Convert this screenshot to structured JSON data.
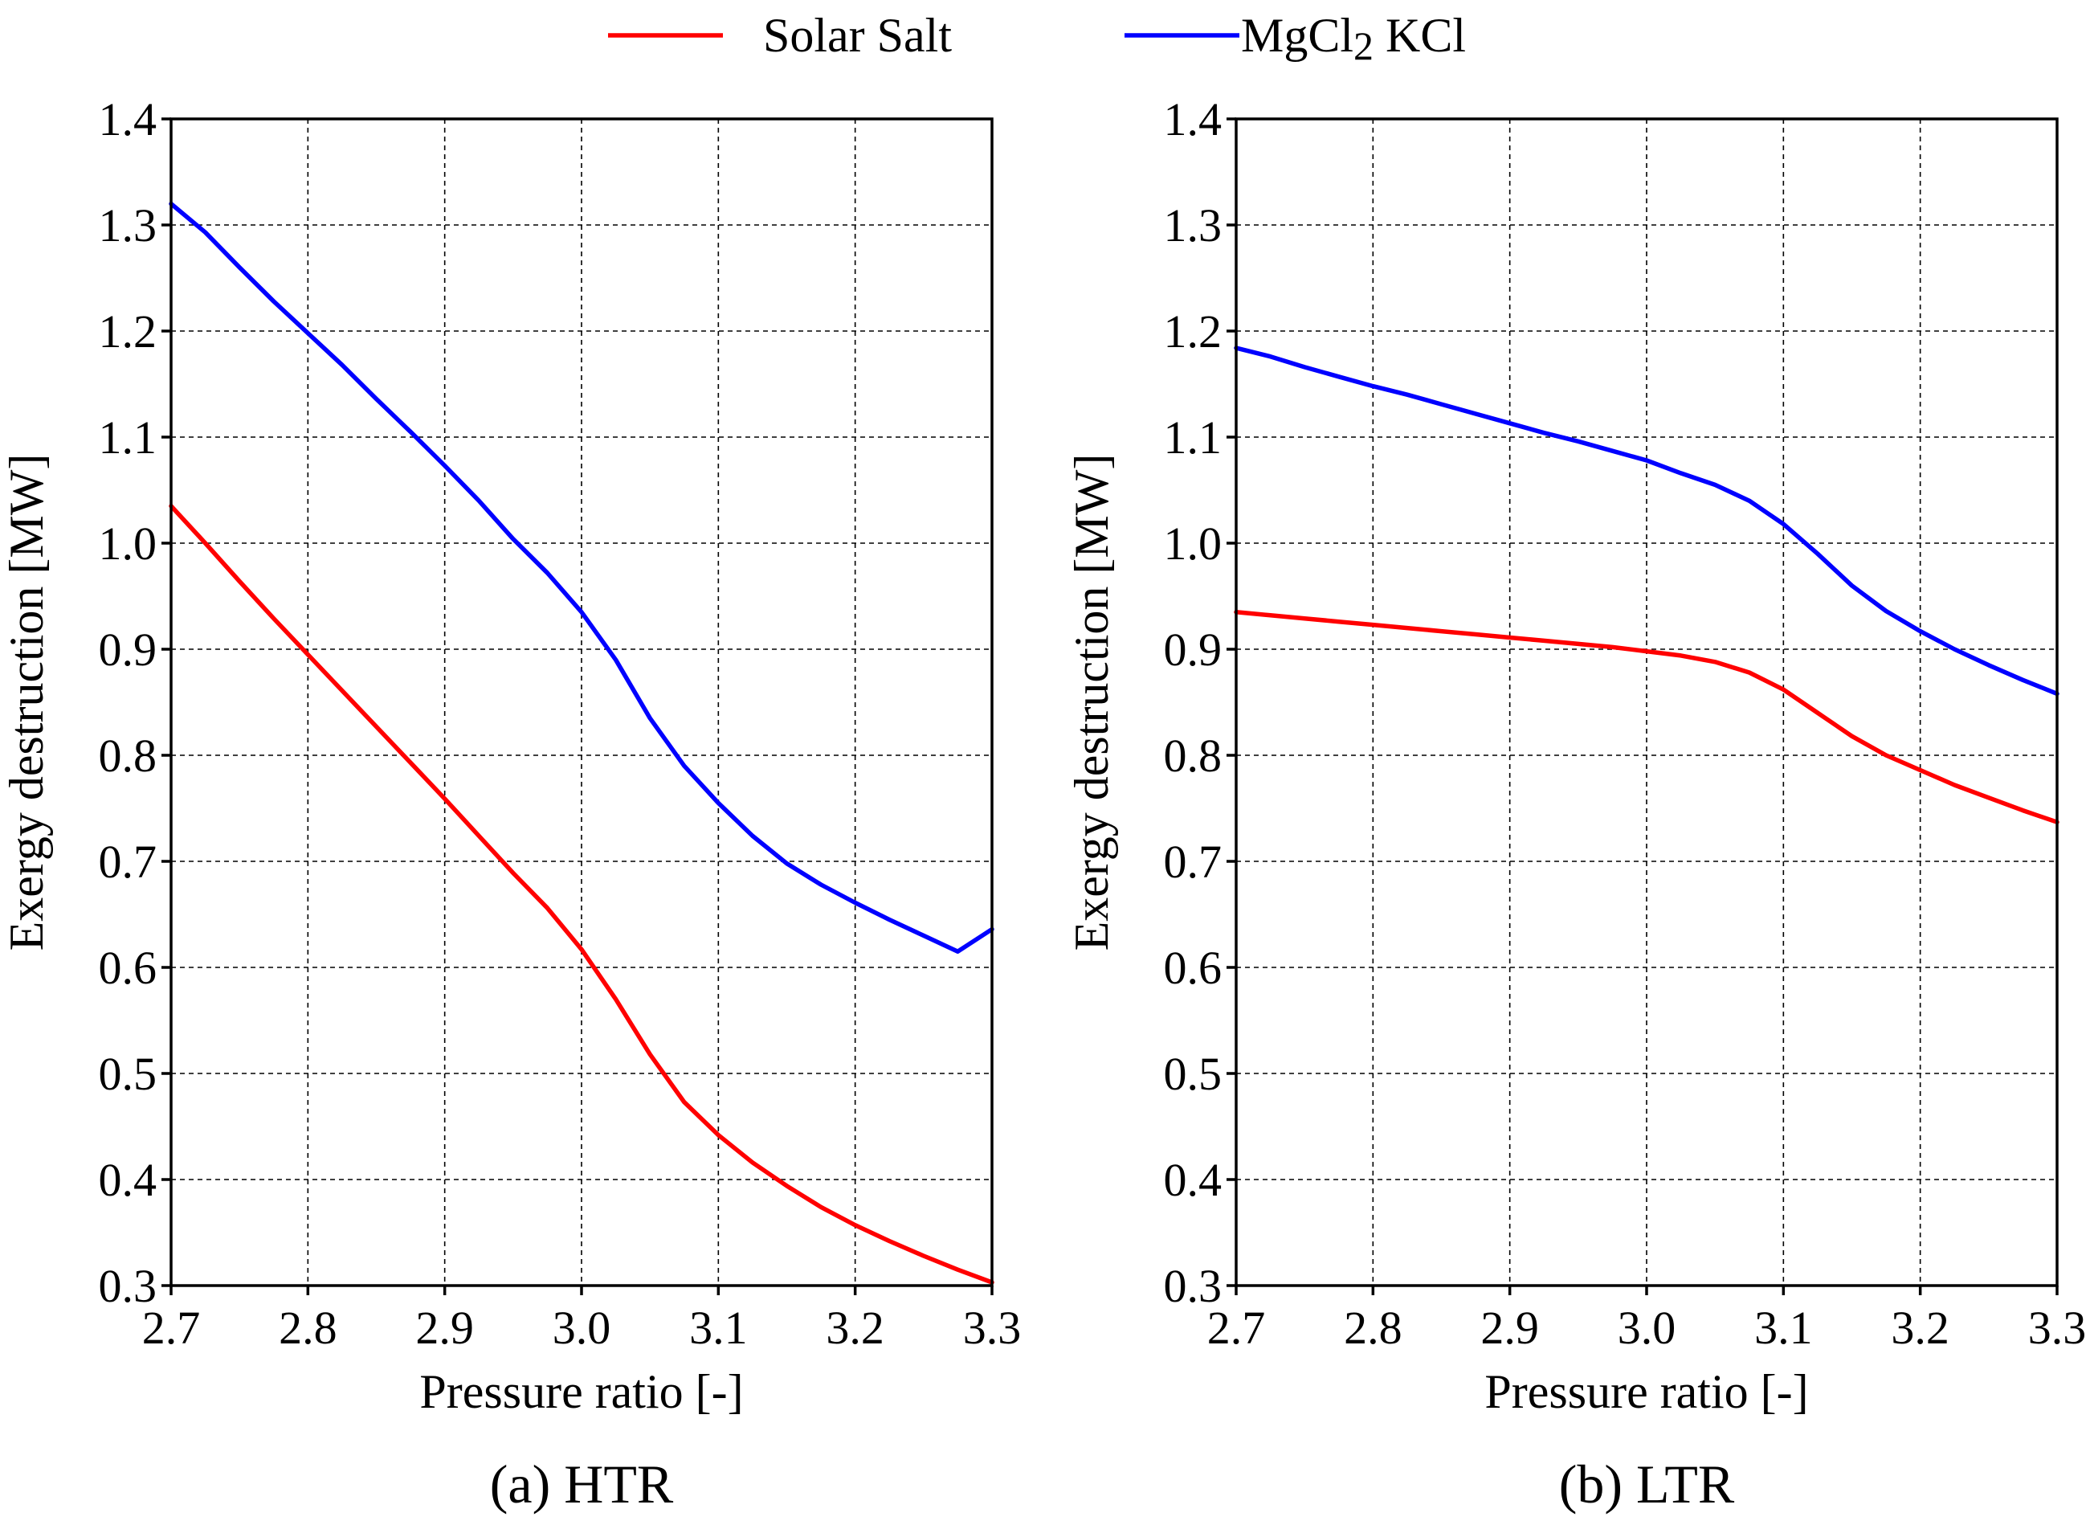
{
  "legend": {
    "entries": [
      {
        "name": "Solar Salt",
        "color": "#ff0000"
      },
      {
        "name_main": "MgCl",
        "name_sub": "2",
        "name_rest": " KCl",
        "color": "#0000ff"
      }
    ]
  },
  "chart_data": [
    {
      "type": "line",
      "panel": "a",
      "caption": "(a) HTR",
      "xlabel": "Pressure ratio [-]",
      "ylabel": "Exergy destruction [MW]",
      "xlim": [
        2.7,
        3.3
      ],
      "ylim": [
        0.3,
        1.4
      ],
      "xticks": [
        "2.7",
        "2.8",
        "2.9",
        "3.0",
        "3.1",
        "3.2",
        "3.3"
      ],
      "yticks": [
        "0.3",
        "0.4",
        "0.5",
        "0.6",
        "0.7",
        "0.8",
        "0.9",
        "1.0",
        "1.1",
        "1.2",
        "1.3",
        "1.4"
      ],
      "grid": true,
      "x": [
        2.7,
        2.725,
        2.75,
        2.775,
        2.8,
        2.825,
        2.85,
        2.875,
        2.9,
        2.925,
        2.95,
        2.975,
        3.0,
        3.025,
        3.05,
        3.075,
        3.1,
        3.125,
        3.15,
        3.175,
        3.2,
        3.225,
        3.25,
        3.275,
        3.3
      ],
      "series": [
        {
          "name": "Solar Salt",
          "color": "#ff0000",
          "values": [
            1.035,
            1.0,
            0.964,
            0.929,
            0.895,
            0.861,
            0.827,
            0.793,
            0.759,
            0.724,
            0.689,
            0.656,
            0.617,
            0.57,
            0.518,
            0.473,
            0.442,
            0.416,
            0.394,
            0.374,
            0.357,
            0.342,
            0.328,
            0.315,
            0.303
          ]
        },
        {
          "name": "MgCl2 KCl",
          "color": "#0000ff",
          "values": [
            1.32,
            1.293,
            1.26,
            1.228,
            1.198,
            1.168,
            1.136,
            1.105,
            1.073,
            1.04,
            1.004,
            0.972,
            0.935,
            0.89,
            0.835,
            0.79,
            0.755,
            0.724,
            0.698,
            0.678,
            0.661,
            0.645,
            0.63,
            0.615,
            0.636
          ]
        }
      ]
    },
    {
      "type": "line",
      "panel": "b",
      "caption": "(b) LTR",
      "xlabel": "Pressure ratio [-]",
      "ylabel": "Exergy destruction [MW]",
      "xlim": [
        2.7,
        3.3
      ],
      "ylim": [
        0.3,
        1.4
      ],
      "xticks": [
        "2.7",
        "2.8",
        "2.9",
        "3.0",
        "3.1",
        "3.2",
        "3.3"
      ],
      "yticks": [
        "0.3",
        "0.4",
        "0.5",
        "0.6",
        "0.7",
        "0.8",
        "0.9",
        "1.0",
        "1.1",
        "1.2",
        "1.3",
        "1.4"
      ],
      "grid": true,
      "x": [
        2.7,
        2.725,
        2.75,
        2.775,
        2.8,
        2.825,
        2.85,
        2.875,
        2.9,
        2.925,
        2.95,
        2.975,
        3.0,
        3.025,
        3.05,
        3.075,
        3.1,
        3.125,
        3.15,
        3.175,
        3.2,
        3.225,
        3.25,
        3.275,
        3.3
      ],
      "series": [
        {
          "name": "Solar Salt",
          "color": "#ff0000",
          "values": [
            0.935,
            0.932,
            0.929,
            0.926,
            0.923,
            0.92,
            0.917,
            0.914,
            0.911,
            0.908,
            0.905,
            0.902,
            0.898,
            0.894,
            0.888,
            0.878,
            0.862,
            0.84,
            0.818,
            0.8,
            0.786,
            0.772,
            0.76,
            0.748,
            0.737
          ]
        },
        {
          "name": "MgCl2 KCl",
          "color": "#0000ff",
          "values": [
            1.184,
            1.176,
            1.166,
            1.157,
            1.148,
            1.14,
            1.131,
            1.122,
            1.113,
            1.104,
            1.096,
            1.087,
            1.078,
            1.066,
            1.055,
            1.04,
            1.018,
            0.99,
            0.96,
            0.936,
            0.917,
            0.9,
            0.885,
            0.871,
            0.858
          ]
        }
      ]
    }
  ]
}
